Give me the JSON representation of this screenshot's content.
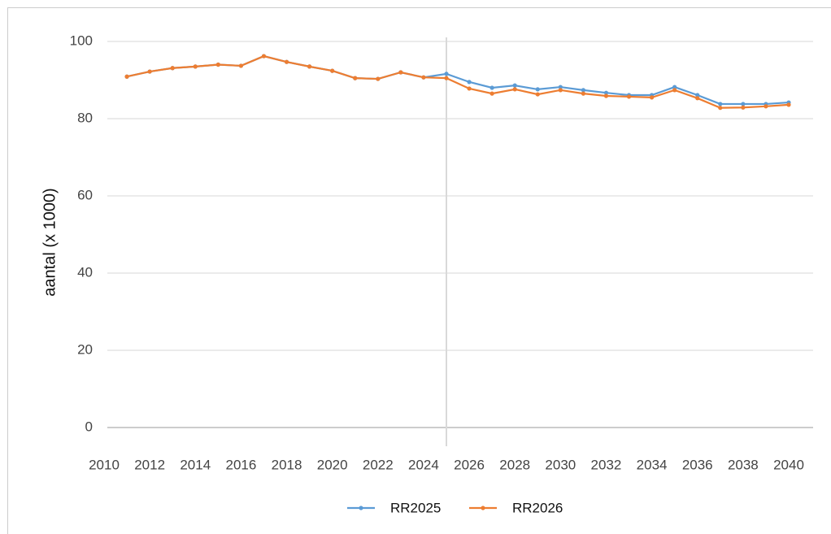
{
  "chart_data": {
    "type": "line",
    "y_label": "aantal (x 1000)",
    "x": [
      2011,
      2012,
      2013,
      2014,
      2015,
      2016,
      2017,
      2018,
      2019,
      2020,
      2021,
      2022,
      2023,
      2024,
      2025,
      2026,
      2027,
      2028,
      2029,
      2030,
      2031,
      2032,
      2033,
      2034,
      2035,
      2036,
      2037,
      2038,
      2039,
      2040
    ],
    "series": [
      {
        "name": "RR2025",
        "color": "#5b9bd5",
        "values": [
          90.9,
          92.2,
          93.1,
          93.5,
          94.0,
          93.7,
          96.2,
          94.7,
          93.5,
          92.4,
          90.5,
          90.3,
          92.0,
          90.7,
          91.6,
          89.5,
          88.0,
          88.6,
          87.6,
          88.2,
          87.4,
          86.7,
          86.1,
          86.1,
          88.2,
          86.1,
          83.8,
          83.8,
          83.8,
          84.2
        ]
      },
      {
        "name": "RR2026",
        "color": "#ed7d31",
        "values": [
          90.9,
          92.2,
          93.1,
          93.5,
          94.0,
          93.7,
          96.2,
          94.7,
          93.5,
          92.4,
          90.5,
          90.3,
          92.0,
          90.7,
          90.5,
          87.8,
          86.5,
          87.6,
          86.3,
          87.4,
          86.5,
          85.9,
          85.7,
          85.5,
          87.4,
          85.3,
          82.8,
          82.9,
          83.2,
          83.6
        ]
      }
    ],
    "xlim": [
      2010,
      2040
    ],
    "xticks": [
      2010,
      2012,
      2014,
      2016,
      2018,
      2020,
      2022,
      2024,
      2026,
      2028,
      2030,
      2032,
      2034,
      2036,
      2038,
      2040
    ],
    "ylim": [
      0,
      100
    ],
    "yticks": [
      0,
      20,
      40,
      60,
      80,
      100
    ],
    "vline": 2025,
    "grid": true,
    "legend": "bottom"
  }
}
